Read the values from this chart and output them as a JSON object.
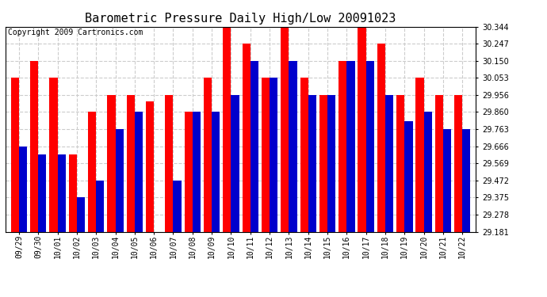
{
  "title": "Barometric Pressure Daily High/Low 20091023",
  "copyright": "Copyright 2009 Cartronics.com",
  "dates": [
    "09/29",
    "09/30",
    "10/01",
    "10/02",
    "10/03",
    "10/04",
    "10/05",
    "10/06",
    "10/07",
    "10/08",
    "10/09",
    "10/10",
    "10/11",
    "10/12",
    "10/13",
    "10/14",
    "10/15",
    "10/16",
    "10/17",
    "10/18",
    "10/19",
    "10/20",
    "10/21",
    "10/22"
  ],
  "highs": [
    30.053,
    30.15,
    30.053,
    29.617,
    29.86,
    29.956,
    29.956,
    29.92,
    29.956,
    29.86,
    30.053,
    30.344,
    30.247,
    30.053,
    30.344,
    30.053,
    29.956,
    30.15,
    30.344,
    30.247,
    29.956,
    30.053,
    29.956,
    29.956
  ],
  "lows": [
    29.666,
    29.617,
    29.617,
    29.375,
    29.472,
    29.763,
    29.86,
    29.181,
    29.472,
    29.86,
    29.86,
    29.956,
    30.15,
    30.053,
    30.15,
    29.956,
    29.956,
    30.15,
    30.15,
    29.956,
    29.81,
    29.86,
    29.763,
    29.763
  ],
  "high_color": "#ff0000",
  "low_color": "#0000cc",
  "bg_color": "#ffffff",
  "grid_color": "#cccccc",
  "ymin": 29.181,
  "ymax": 30.344,
  "yticks": [
    29.181,
    29.278,
    29.375,
    29.472,
    29.569,
    29.666,
    29.763,
    29.86,
    29.956,
    30.053,
    30.15,
    30.247,
    30.344
  ],
  "title_fontsize": 11,
  "copyright_fontsize": 7
}
